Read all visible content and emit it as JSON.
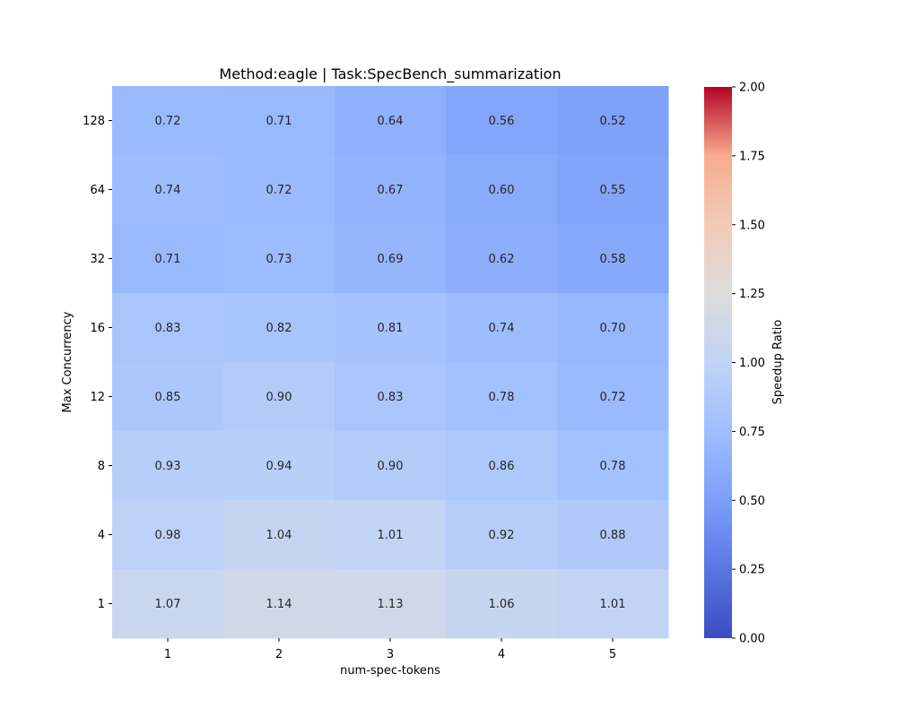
{
  "chart_data": {
    "type": "heatmap",
    "title": "Method:eagle  |  Task:SpecBench_summarization",
    "xlabel": "num-spec-tokens",
    "ylabel": "Max Concurrency",
    "x_categories": [
      "1",
      "2",
      "3",
      "4",
      "5"
    ],
    "y_categories": [
      "128",
      "64",
      "32",
      "16",
      "12",
      "8",
      "4",
      "1"
    ],
    "values": [
      [
        0.72,
        0.71,
        0.64,
        0.56,
        0.52
      ],
      [
        0.74,
        0.72,
        0.67,
        0.6,
        0.55
      ],
      [
        0.71,
        0.73,
        0.69,
        0.62,
        0.58
      ],
      [
        0.83,
        0.82,
        0.81,
        0.74,
        0.7
      ],
      [
        0.85,
        0.9,
        0.83,
        0.78,
        0.72
      ],
      [
        0.93,
        0.94,
        0.9,
        0.86,
        0.78
      ],
      [
        0.98,
        1.04,
        1.01,
        0.92,
        0.88
      ],
      [
        1.07,
        1.14,
        1.13,
        1.06,
        1.01
      ]
    ],
    "colorbar": {
      "label": "Speedup Ratio",
      "range": [
        0.0,
        2.0
      ],
      "ticks": [
        "0.00",
        "0.25",
        "0.50",
        "0.75",
        "1.00",
        "1.25",
        "1.50",
        "1.75",
        "2.00"
      ],
      "colormap": "coolwarm"
    }
  }
}
